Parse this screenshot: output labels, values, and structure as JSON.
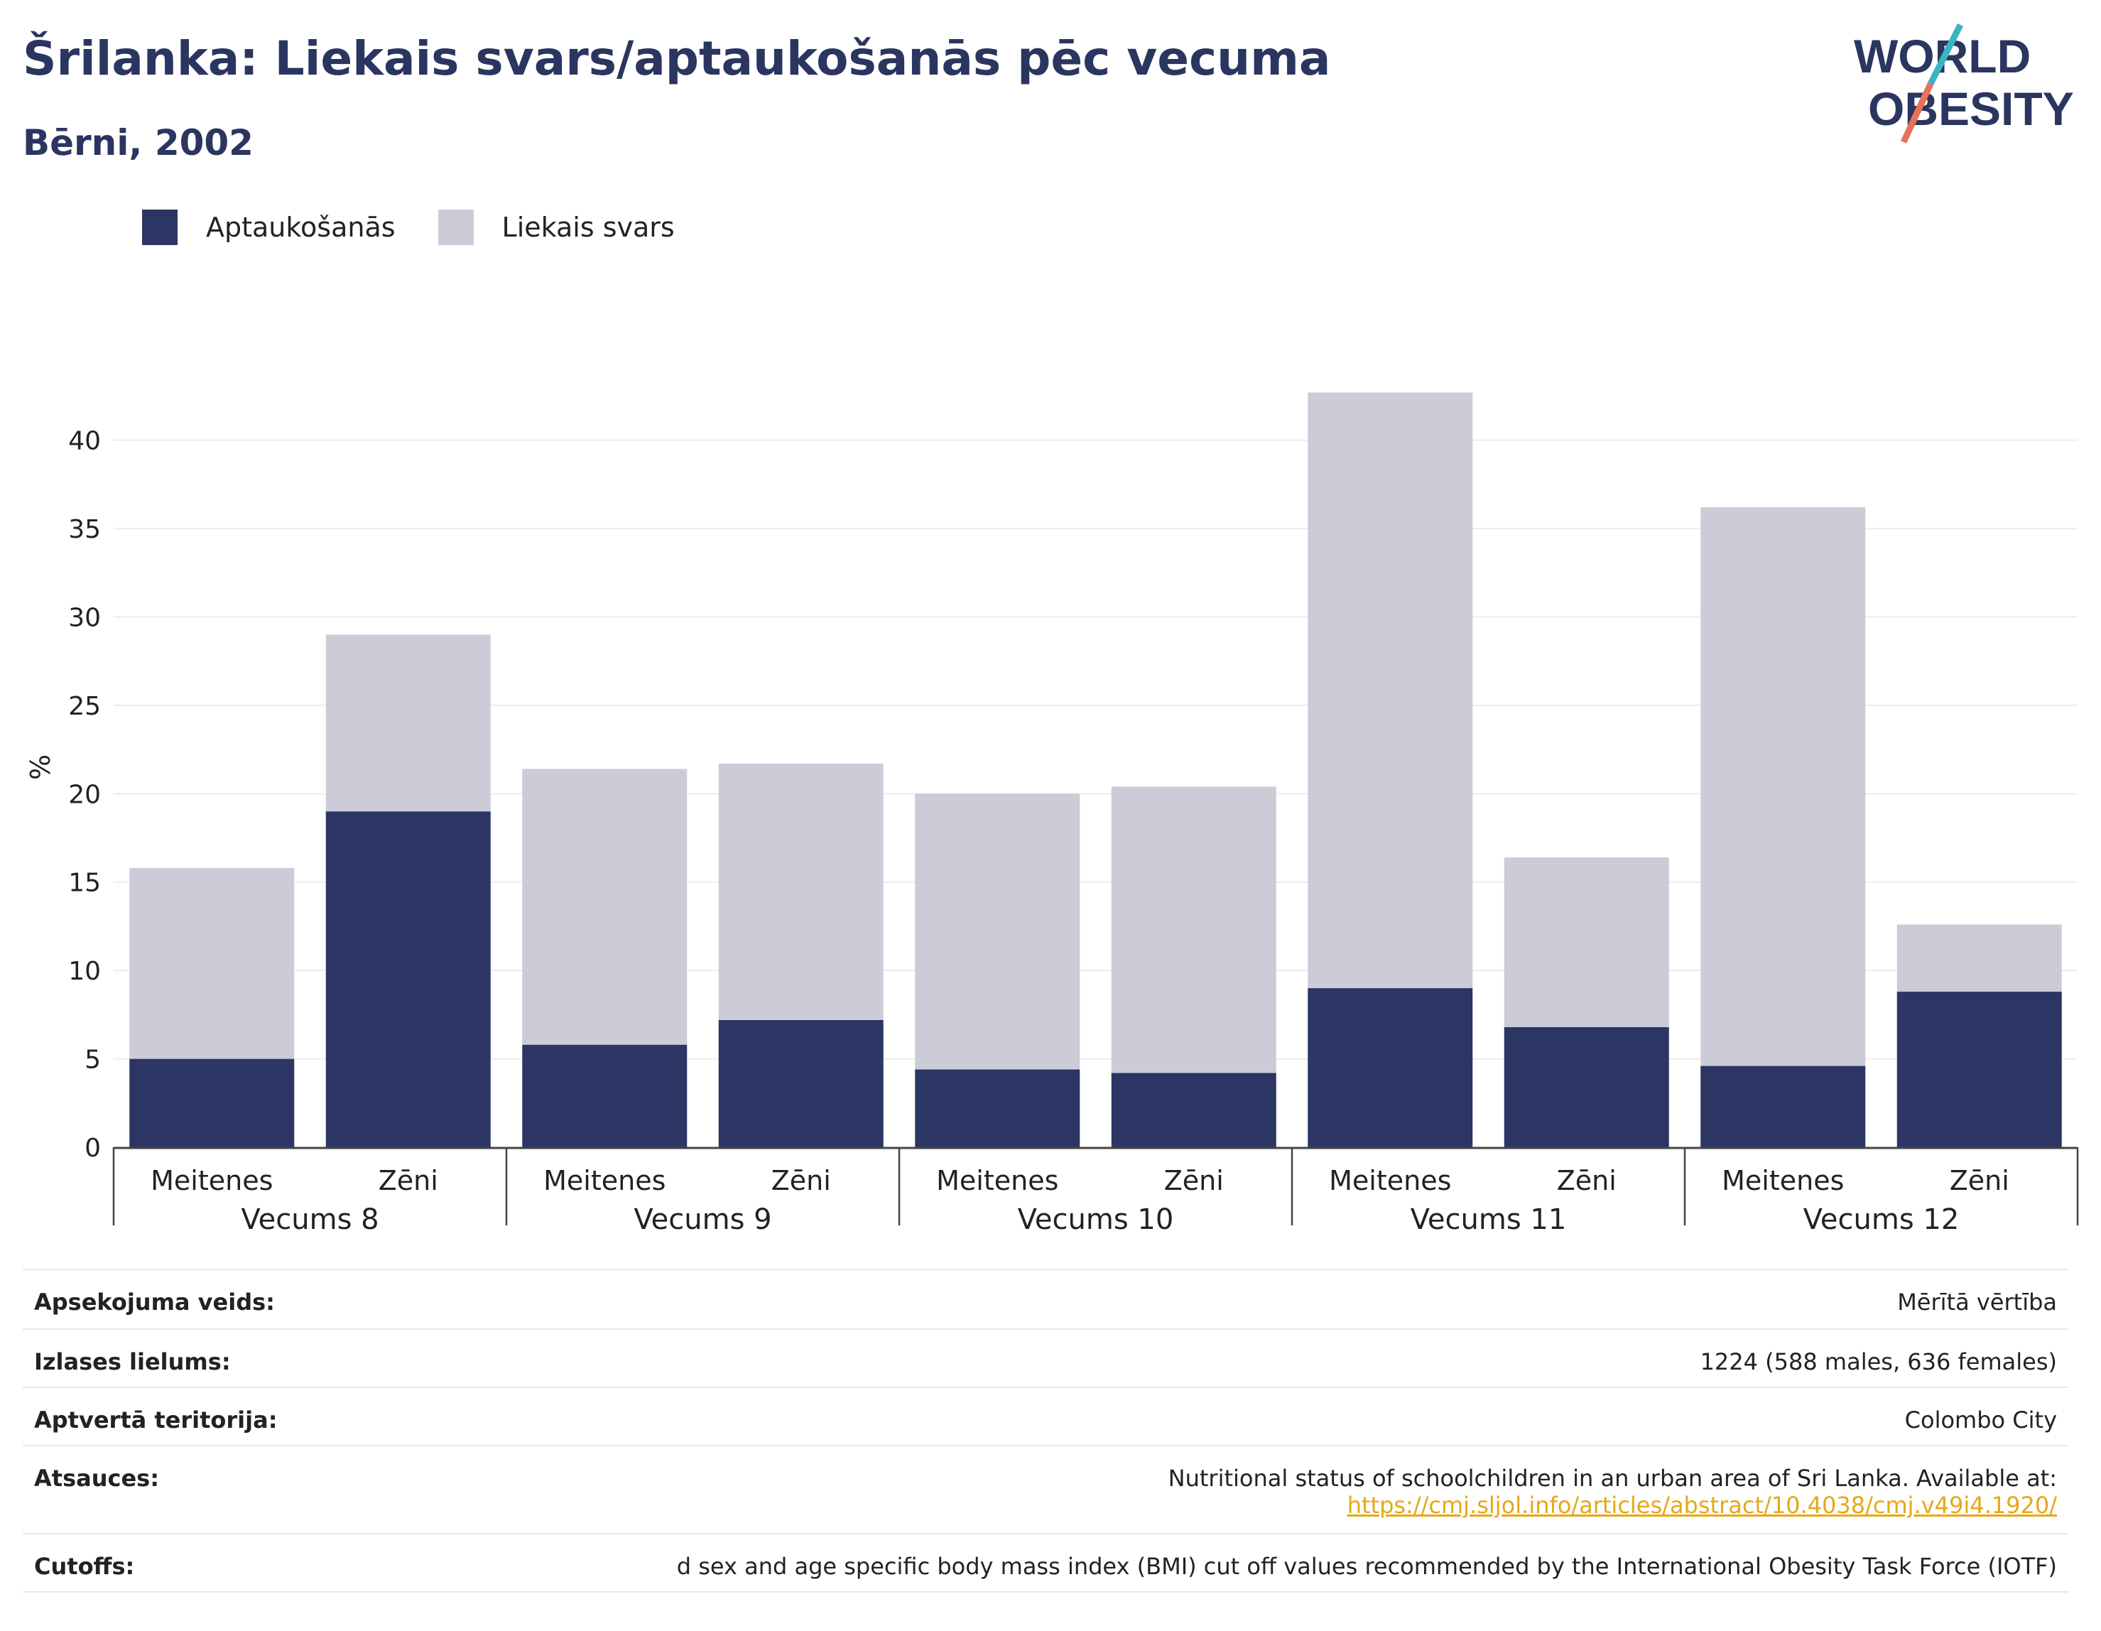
{
  "header": {
    "title": "Šrilanka: Liekais svars/aptaukošanās pēc vecuma",
    "subtitle": "Bērni, 2002"
  },
  "logo": {
    "line1": "WORLD",
    "line2": "OBESITY",
    "accent_teal": "#3bb4c1",
    "accent_red": "#e8715a"
  },
  "legend": [
    {
      "label": "Aptaukošanās",
      "color": "#2b3664"
    },
    {
      "label": "Liekais svars",
      "color": "#cbccd8"
    }
  ],
  "chart_data": {
    "type": "bar",
    "stacked": true,
    "ylabel": "%",
    "ylim": [
      0,
      43
    ],
    "yticks": [
      0,
      5,
      10,
      15,
      20,
      25,
      30,
      35,
      40
    ],
    "grid": true,
    "legend_position": "top-left",
    "groups": [
      "Vecums 8",
      "Vecums 9",
      "Vecums 10",
      "Vecums 11",
      "Vecums 12"
    ],
    "categories": [
      "Meitenes",
      "Zēni",
      "Meitenes",
      "Zēni",
      "Meitenes",
      "Zēni",
      "Meitenes",
      "Zēni",
      "Meitenes",
      "Zēni"
    ],
    "series": [
      {
        "name": "Aptaukošanās",
        "color": "#2b3664",
        "values": [
          5.0,
          19.0,
          5.8,
          7.2,
          4.4,
          4.2,
          9.0,
          6.8,
          4.6,
          8.8
        ]
      },
      {
        "name": "Liekais svars",
        "color": "#cbccd8",
        "values": [
          10.8,
          10.0,
          15.6,
          14.5,
          15.6,
          16.2,
          33.7,
          9.6,
          31.6,
          3.8
        ]
      }
    ]
  },
  "meta": [
    {
      "label": "Apsekojuma veids:",
      "value": "Mērītā vērtība"
    },
    {
      "label": "Izlases lielums:",
      "value": "1224 (588 males, 636 females)"
    },
    {
      "label": "Aptvertā teritorija:",
      "value": "Colombo City"
    },
    {
      "label": "Atsauces:",
      "value": "Nutritional status of schoolchildren in an urban area of Sri Lanka. Available at:",
      "link": "https://cmj.sljol.info/articles/abstract/10.4038/cmj.v49i4.1920/"
    },
    {
      "label": "Cutoffs:",
      "value": "d sex and age specific body mass index (BMI) cut off values recommended by the International Obesity Task Force (IOTF)"
    }
  ]
}
